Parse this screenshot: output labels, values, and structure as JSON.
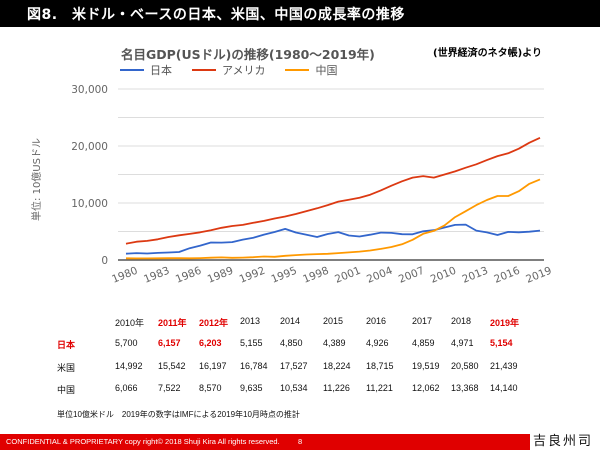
{
  "header": {
    "title": "図8.　米ドル・ベースの日本、米国、中国の成長率の推移"
  },
  "source_note": "(世界経済のネタ帳)より",
  "chart_data": {
    "type": "line",
    "title": "名目GDP(USドル)の推移(1980〜2019年)",
    "ylabel": "単位: 10億USドル",
    "xlabel": "",
    "ylim": [
      0,
      30000
    ],
    "yticks": [
      0,
      10000,
      20000,
      30000
    ],
    "ytick_labels": [
      "0",
      "10,000",
      "20,000",
      "30,000"
    ],
    "grid_step": 5000,
    "grid": true,
    "legend_position": "top-left",
    "x": [
      1980,
      1981,
      1982,
      1983,
      1984,
      1985,
      1986,
      1987,
      1988,
      1989,
      1990,
      1991,
      1992,
      1993,
      1994,
      1995,
      1996,
      1997,
      1998,
      1999,
      2000,
      2001,
      2002,
      2003,
      2004,
      2005,
      2006,
      2007,
      2008,
      2009,
      2010,
      2011,
      2012,
      2013,
      2014,
      2015,
      2016,
      2017,
      2018,
      2019
    ],
    "xtick_labels": [
      "1980",
      "1983",
      "1986",
      "1989",
      "1992",
      "1995",
      "1998",
      "2001",
      "2004",
      "2007",
      "2010",
      "2013",
      "2016",
      "2019"
    ],
    "series": [
      {
        "name": "日本",
        "color": "#3366cc",
        "values": [
          1105,
          1218,
          1134,
          1243,
          1318,
          1398,
          2078,
          2532,
          3072,
          3054,
          3133,
          3584,
          3909,
          4454,
          4907,
          5449,
          4833,
          4414,
          4033,
          4563,
          4888,
          4304,
          4115,
          4445,
          4815,
          4755,
          4530,
          4515,
          5038,
          5231,
          5700,
          6157,
          6203,
          5155,
          4850,
          4389,
          4926,
          4859,
          4971,
          5154
        ]
      },
      {
        "name": "アメリカ",
        "color": "#dc3912",
        "values": [
          2857,
          3207,
          3344,
          3634,
          4037,
          4339,
          4580,
          4855,
          5236,
          5642,
          5963,
          6158,
          6520,
          6859,
          7287,
          7640,
          8073,
          8578,
          9063,
          9631,
          10252,
          10582,
          10936,
          11458,
          12214,
          13037,
          13815,
          14452,
          14713,
          14449,
          14992,
          15542,
          16197,
          16784,
          17527,
          18224,
          18715,
          19519,
          20580,
          21439
        ]
      },
      {
        "name": "中国",
        "color": "#ff9900",
        "values": [
          303,
          288,
          285,
          306,
          315,
          310,
          301,
          326,
          408,
          457,
          394,
          413,
          492,
          617,
          564,
          734,
          863,
          962,
          1029,
          1094,
          1211,
          1339,
          1471,
          1660,
          1955,
          2286,
          2752,
          3552,
          4598,
          5110,
          6066,
          7522,
          8570,
          9635,
          10534,
          11226,
          11221,
          12062,
          13368,
          14140
        ]
      }
    ]
  },
  "table": {
    "columns": [
      "2010年",
      "2011年",
      "2012年",
      "2013",
      "2014",
      "2015",
      "2016",
      "2017",
      "2018",
      "2019年"
    ],
    "highlight_columns": [
      1,
      2,
      9
    ],
    "rows": [
      {
        "label": "日本",
        "highlight_label": true,
        "values": [
          "5,700",
          "6,157",
          "6,203",
          "5,155",
          "4,850",
          "4,389",
          "4,926",
          "4,859",
          "4,971",
          "5,154"
        ],
        "highlight_values": [
          1,
          2,
          9
        ]
      },
      {
        "label": "米国",
        "highlight_label": false,
        "values": [
          "14,992",
          "15,542",
          "16,197",
          "16,784",
          "17,527",
          "18,224",
          "18,715",
          "19,519",
          "20,580",
          "21,439"
        ],
        "highlight_values": []
      },
      {
        "label": "中国",
        "highlight_label": false,
        "values": [
          "6,066",
          "7,522",
          "8,570",
          "9,635",
          "10,534",
          "11,226",
          "11,221",
          "12,062",
          "13,368",
          "14,140"
        ],
        "highlight_values": []
      }
    ]
  },
  "note": "単位10億米ドル　2019年の数字はIMFによる2019年10月時点の推計",
  "footer": {
    "text": "CONFIDENTIAL & PROPRIETARY  copy right© 2018 Shuji Kira All rights reserved.",
    "page": "8"
  },
  "brand": "吉良州司"
}
